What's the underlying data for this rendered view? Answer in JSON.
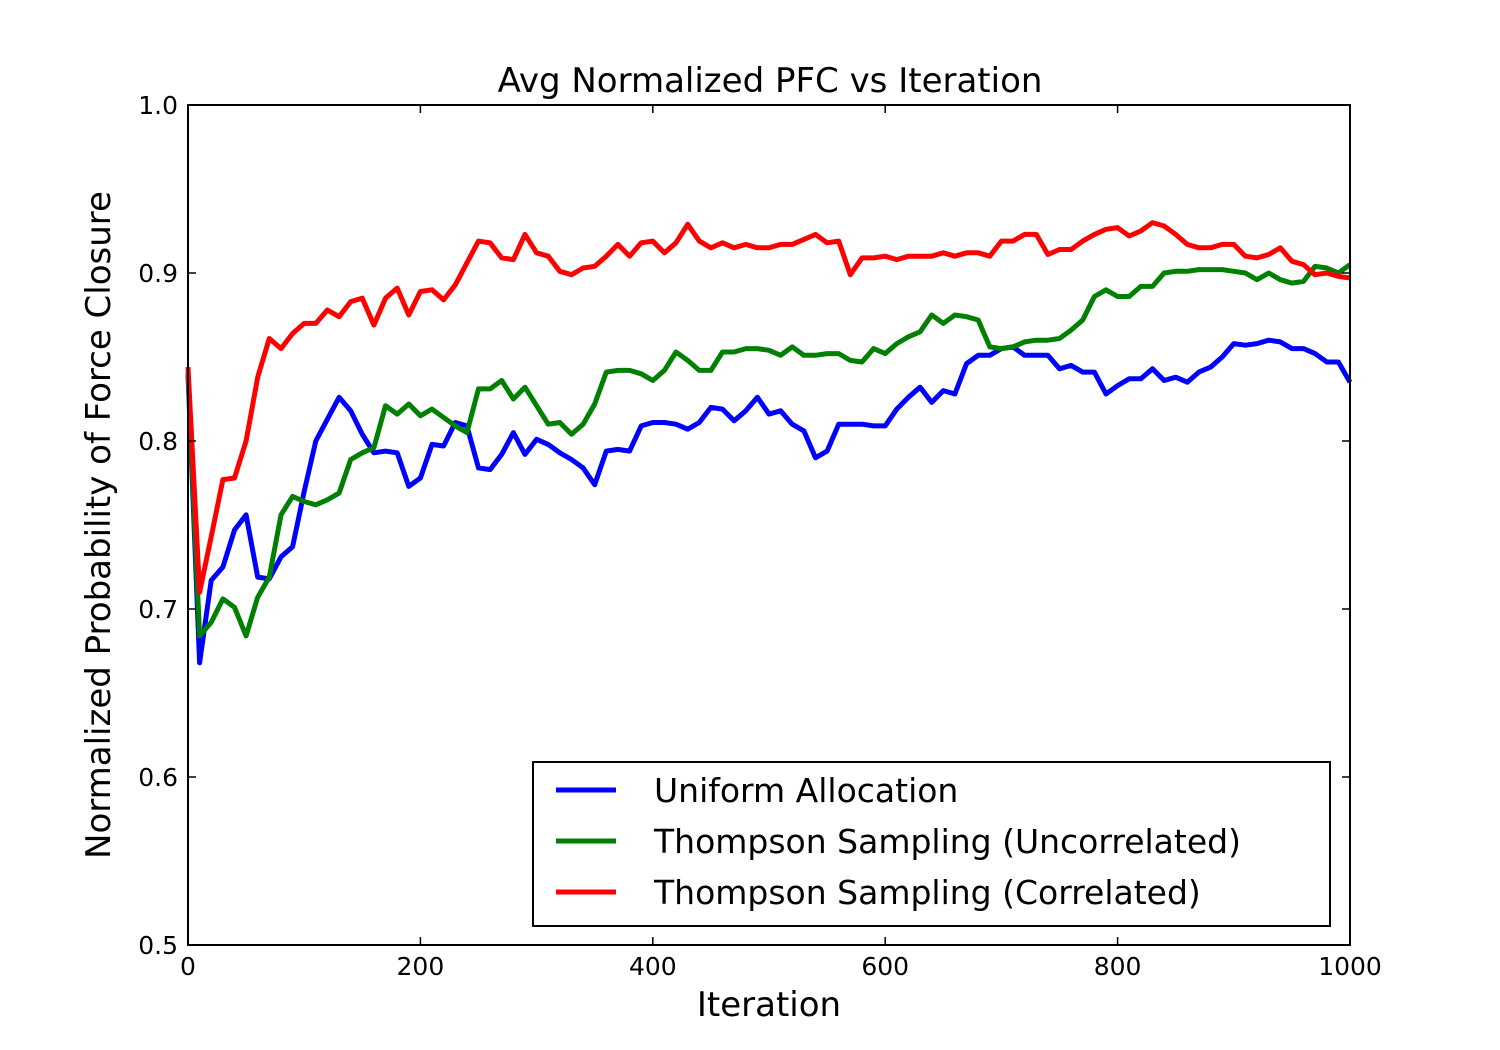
{
  "chart_data": {
    "type": "line",
    "title": "Avg Normalized PFC vs Iteration",
    "xlabel": "Iteration",
    "ylabel": "Normalized Probability of Force Closure",
    "xlim": [
      0,
      1000
    ],
    "ylim": [
      0.5,
      1.0
    ],
    "xticks": [
      0,
      200,
      400,
      600,
      800,
      1000
    ],
    "yticks": [
      0.5,
      0.6,
      0.7,
      0.8,
      0.9,
      1.0
    ],
    "xtick_labels": [
      "0",
      "200",
      "400",
      "600",
      "800",
      "1000"
    ],
    "ytick_labels": [
      "0.5",
      "0.6",
      "0.7",
      "0.8",
      "0.9",
      "1.0"
    ],
    "grid": false,
    "legend_position": "lower-right",
    "x": [
      0,
      10,
      20,
      30,
      40,
      50,
      60,
      70,
      80,
      90,
      100,
      110,
      120,
      130,
      140,
      150,
      160,
      170,
      180,
      190,
      200,
      210,
      220,
      230,
      240,
      250,
      260,
      270,
      280,
      290,
      300,
      310,
      320,
      330,
      340,
      350,
      360,
      370,
      380,
      390,
      400,
      410,
      420,
      430,
      440,
      450,
      460,
      470,
      480,
      490,
      500,
      510,
      520,
      530,
      540,
      550,
      560,
      570,
      580,
      590,
      600,
      610,
      620,
      630,
      640,
      650,
      660,
      670,
      680,
      690,
      700,
      710,
      720,
      730,
      740,
      750,
      760,
      770,
      780,
      790,
      800,
      810,
      820,
      830,
      840,
      850,
      860,
      870,
      880,
      890,
      900,
      910,
      920,
      930,
      940,
      950,
      960,
      970,
      980,
      990,
      1000
    ],
    "series": [
      {
        "name": "Uniform Allocation",
        "color": "#0000ff",
        "values": [
          0.84,
          0.668,
          0.717,
          0.725,
          0.747,
          0.756,
          0.719,
          0.718,
          0.731,
          0.737,
          0.77,
          0.8,
          0.813,
          0.826,
          0.818,
          0.804,
          0.793,
          0.794,
          0.793,
          0.773,
          0.778,
          0.798,
          0.797,
          0.811,
          0.809,
          0.784,
          0.783,
          0.792,
          0.805,
          0.792,
          0.801,
          0.798,
          0.793,
          0.789,
          0.784,
          0.774,
          0.794,
          0.795,
          0.794,
          0.809,
          0.811,
          0.811,
          0.81,
          0.807,
          0.811,
          0.82,
          0.819,
          0.812,
          0.818,
          0.826,
          0.816,
          0.818,
          0.81,
          0.806,
          0.79,
          0.794,
          0.81,
          0.81,
          0.81,
          0.809,
          0.809,
          0.819,
          0.826,
          0.832,
          0.823,
          0.83,
          0.828,
          0.846,
          0.851,
          0.851,
          0.855,
          0.856,
          0.851,
          0.851,
          0.851,
          0.843,
          0.845,
          0.841,
          0.841,
          0.828,
          0.833,
          0.837,
          0.837,
          0.843,
          0.836,
          0.838,
          0.835,
          0.841,
          0.844,
          0.85,
          0.858,
          0.857,
          0.858,
          0.86,
          0.859,
          0.855,
          0.855,
          0.852,
          0.847,
          0.847,
          0.835
        ]
      },
      {
        "name": "Thompson Sampling (Uncorrelated)",
        "color": "#008000",
        "values": [
          0.84,
          0.684,
          0.692,
          0.706,
          0.701,
          0.684,
          0.707,
          0.719,
          0.756,
          0.767,
          0.764,
          0.762,
          0.765,
          0.769,
          0.789,
          0.793,
          0.796,
          0.821,
          0.816,
          0.822,
          0.815,
          0.819,
          0.814,
          0.809,
          0.805,
          0.831,
          0.831,
          0.836,
          0.825,
          0.832,
          0.821,
          0.81,
          0.811,
          0.804,
          0.81,
          0.822,
          0.841,
          0.842,
          0.842,
          0.84,
          0.836,
          0.842,
          0.853,
          0.848,
          0.842,
          0.842,
          0.853,
          0.853,
          0.855,
          0.855,
          0.854,
          0.851,
          0.856,
          0.851,
          0.851,
          0.852,
          0.852,
          0.848,
          0.847,
          0.855,
          0.852,
          0.858,
          0.862,
          0.865,
          0.875,
          0.87,
          0.875,
          0.874,
          0.872,
          0.856,
          0.855,
          0.856,
          0.859,
          0.86,
          0.86,
          0.861,
          0.866,
          0.872,
          0.886,
          0.89,
          0.886,
          0.886,
          0.892,
          0.892,
          0.9,
          0.901,
          0.901,
          0.902,
          0.902,
          0.902,
          0.901,
          0.9,
          0.896,
          0.9,
          0.896,
          0.894,
          0.895,
          0.904,
          0.903,
          0.9,
          0.905
        ]
      },
      {
        "name": "Thompson Sampling (Correlated)",
        "color": "#ff0000",
        "values": [
          0.844,
          0.71,
          0.743,
          0.777,
          0.778,
          0.8,
          0.838,
          0.861,
          0.855,
          0.864,
          0.87,
          0.87,
          0.878,
          0.874,
          0.883,
          0.885,
          0.869,
          0.885,
          0.891,
          0.875,
          0.889,
          0.89,
          0.884,
          0.893,
          0.906,
          0.919,
          0.918,
          0.909,
          0.908,
          0.923,
          0.912,
          0.91,
          0.901,
          0.899,
          0.903,
          0.904,
          0.91,
          0.917,
          0.91,
          0.918,
          0.919,
          0.912,
          0.918,
          0.929,
          0.919,
          0.915,
          0.918,
          0.915,
          0.917,
          0.915,
          0.915,
          0.917,
          0.917,
          0.92,
          0.923,
          0.918,
          0.919,
          0.899,
          0.909,
          0.909,
          0.91,
          0.908,
          0.91,
          0.91,
          0.91,
          0.912,
          0.91,
          0.912,
          0.912,
          0.91,
          0.919,
          0.919,
          0.923,
          0.923,
          0.911,
          0.914,
          0.914,
          0.919,
          0.923,
          0.926,
          0.927,
          0.922,
          0.925,
          0.93,
          0.928,
          0.923,
          0.917,
          0.915,
          0.915,
          0.917,
          0.917,
          0.91,
          0.909,
          0.911,
          0.915,
          0.907,
          0.905,
          0.899,
          0.9,
          0.898,
          0.897
        ]
      }
    ]
  }
}
